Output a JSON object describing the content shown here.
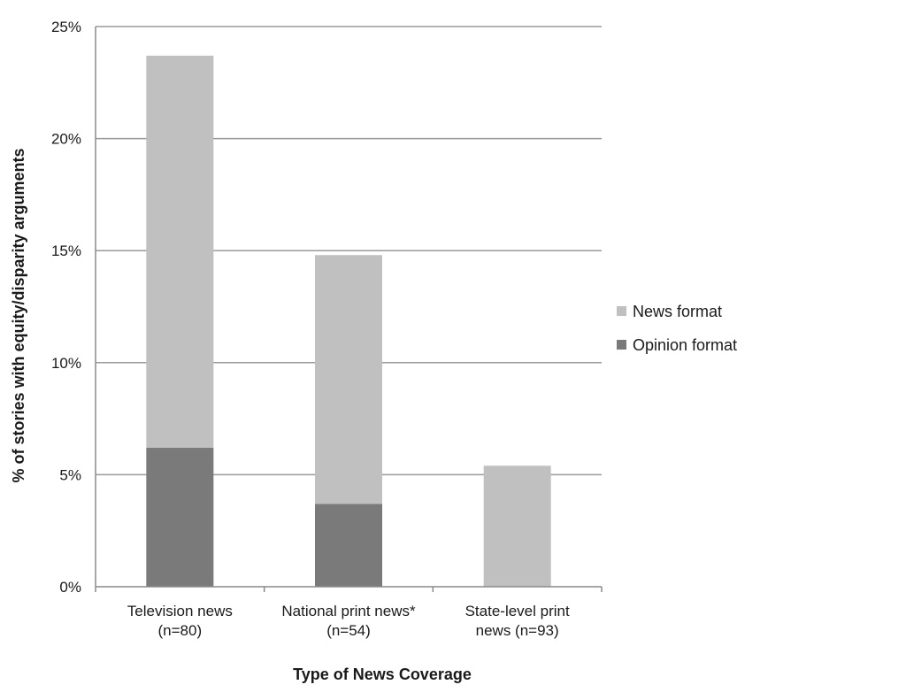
{
  "chart_data": {
    "type": "bar",
    "stacked": true,
    "categories": [
      [
        "Television news",
        "(n=80)"
      ],
      [
        "National print news*",
        "(n=54)"
      ],
      [
        "State-level print",
        "news (n=93)"
      ]
    ],
    "series": [
      {
        "name": "Opinion format",
        "values": [
          6.2,
          3.7,
          0
        ],
        "color": "#7a7a7a"
      },
      {
        "name": "News format",
        "values": [
          17.5,
          11.1,
          5.4
        ],
        "color": "#c0c0c0"
      }
    ],
    "xlabel": "Type of News Coverage",
    "ylabel": "% of stories with equity/disparity arguments",
    "ylim": [
      0,
      25
    ],
    "yticks": [
      0,
      5,
      10,
      15,
      20,
      25
    ],
    "ytick_format": "%",
    "grid": true,
    "legend": {
      "placement": "right",
      "entries": [
        "News format",
        "Opinion format"
      ]
    }
  }
}
